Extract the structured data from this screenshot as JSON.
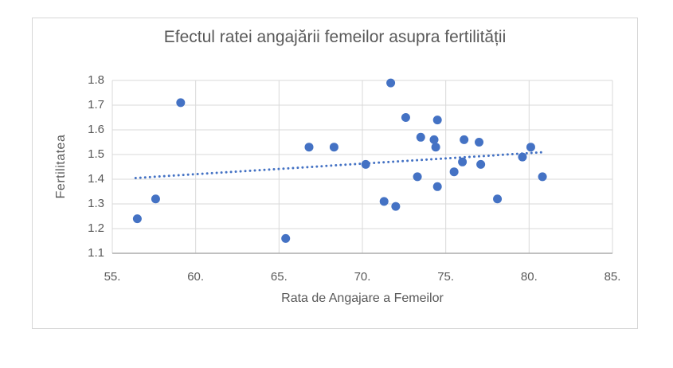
{
  "chart_data": {
    "type": "scatter",
    "title": "Efectul ratei angajării femeilor asupra fertilității",
    "xlabel": "Rata de Angajare a Femeilor",
    "ylabel": "Fertilitatea",
    "xlim": [
      55,
      85
    ],
    "ylim": [
      1.1,
      1.8
    ],
    "grid": true,
    "legend": "none",
    "x_tick_values": [
      55,
      60,
      65,
      70,
      75,
      80,
      85
    ],
    "x_tick_labels": [
      "55.",
      "60.",
      "65.",
      "70.",
      "75.",
      "80.",
      "85."
    ],
    "y_tick_values": [
      1.1,
      1.2,
      1.3,
      1.4,
      1.5,
      1.6,
      1.7,
      1.8
    ],
    "y_tick_labels": [
      "1.1",
      "1.2",
      "1.3",
      "1.4",
      "1.5",
      "1.6",
      "1.7",
      "1.8"
    ],
    "points": [
      [
        56.5,
        1.24
      ],
      [
        57.6,
        1.32
      ],
      [
        59.1,
        1.71
      ],
      [
        65.4,
        1.16
      ],
      [
        66.8,
        1.53
      ],
      [
        68.3,
        1.53
      ],
      [
        70.2,
        1.46
      ],
      [
        71.3,
        1.31
      ],
      [
        71.7,
        1.79
      ],
      [
        72.0,
        1.29
      ],
      [
        72.6,
        1.65
      ],
      [
        73.3,
        1.41
      ],
      [
        73.5,
        1.57
      ],
      [
        74.3,
        1.56
      ],
      [
        74.4,
        1.53
      ],
      [
        74.5,
        1.64
      ],
      [
        74.5,
        1.37
      ],
      [
        75.5,
        1.43
      ],
      [
        76.0,
        1.47
      ],
      [
        76.1,
        1.56
      ],
      [
        77.0,
        1.55
      ],
      [
        77.1,
        1.46
      ],
      [
        78.1,
        1.32
      ],
      [
        79.6,
        1.49
      ],
      [
        80.1,
        1.53
      ],
      [
        80.8,
        1.41
      ]
    ],
    "trendline": {
      "style": "dotted",
      "x1": 56.4,
      "y1": 1.405,
      "x2": 81.0,
      "y2": 1.51
    },
    "colors": {
      "marker": "#4472C4",
      "trendline": "#4472C4",
      "gridline": "#D9D9D9",
      "axis_line": "#ABABAB",
      "text": "#595959",
      "chart_border": "#D6D6D6",
      "background": "#FFFFFF"
    }
  }
}
